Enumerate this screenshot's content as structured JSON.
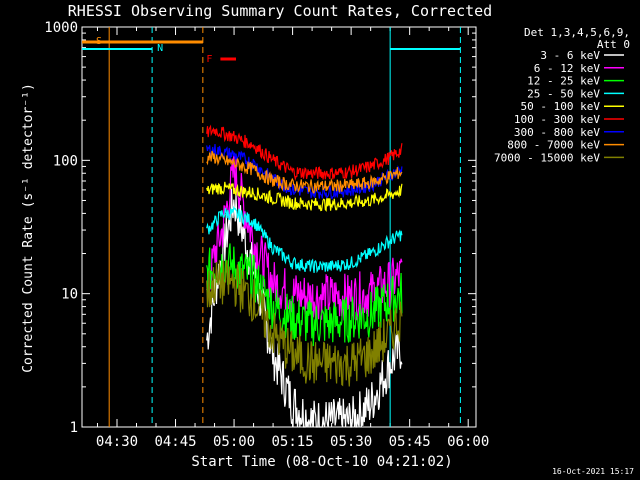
{
  "chart_data": {
    "type": "line",
    "title": "RHESSI Observing Summary Count Rates, Corrected",
    "xlabel": "Start Time (08-Oct-10 04:21:02)",
    "ylabel": "Corrected Count Rate (s⁻¹ detector⁻¹)",
    "x_ticks": [
      "04:30",
      "04:45",
      "05:00",
      "05:15",
      "05:30",
      "05:45",
      "06:00"
    ],
    "y_ticks": [
      "1",
      "10",
      "100",
      "1000"
    ],
    "y_scale": "log",
    "ylim": [
      1,
      1000
    ],
    "xlim": [
      "04:21:02",
      "06:02:00"
    ],
    "grid": false,
    "legend_header": [
      "Det 1,3,4,5,6,9,",
      "Att 0"
    ],
    "legend_position": "top-right",
    "footer_date": "16-Oct-2021 15:17",
    "intervals": [
      {
        "label": "S",
        "color": "#ff8c00",
        "start": "04:21:02",
        "end": "04:52:00"
      },
      {
        "label": "N",
        "color": "#00ffff",
        "start": "04:21:02",
        "end": "04:39:00"
      },
      {
        "label": "F",
        "color": "#ff0000",
        "start": "04:56:30",
        "end": "05:00:30"
      },
      {
        "label": "",
        "color": "#00ffff",
        "start": "05:40:00",
        "end": "05:58:00"
      }
    ],
    "markers": [
      {
        "time": "04:28:00",
        "color": "#ff8c00",
        "style": "solid"
      },
      {
        "time": "04:39:00",
        "color": "#00ffff",
        "style": "dashed"
      },
      {
        "time": "04:52:00",
        "color": "#ff8c00",
        "style": "dashed"
      },
      {
        "time": "05:40:00",
        "color": "#00ffff",
        "style": "solid"
      },
      {
        "time": "05:58:00",
        "color": "#00ffff",
        "style": "dashed"
      }
    ],
    "x_times": [
      "04:53",
      "04:55",
      "04:57",
      "05:00",
      "05:05",
      "05:10",
      "05:15",
      "05:20",
      "05:25",
      "05:30",
      "05:35",
      "05:40",
      "05:43"
    ],
    "series": [
      {
        "name": "3 - 6 keV",
        "color": "#ffffff",
        "values": [
          4.5,
          10,
          20,
          50,
          15,
          3.5,
          1.5,
          1.1,
          1.1,
          1.1,
          1.5,
          3,
          4
        ]
      },
      {
        "name": "6 - 12 keV",
        "color": "#ff00ff",
        "values": [
          9,
          20,
          30,
          85,
          25,
          12,
          10,
          9.5,
          9.5,
          9.5,
          10,
          12,
          14
        ]
      },
      {
        "name": "12 - 25 keV",
        "color": "#00ff00",
        "values": [
          14,
          16,
          17,
          16,
          13,
          8,
          6.5,
          6,
          6,
          6.5,
          7,
          9,
          10
        ]
      },
      {
        "name": "25 - 50 keV",
        "color": "#00ffff",
        "values": [
          30,
          34,
          40,
          40,
          35,
          22,
          17,
          16,
          16,
          17,
          20,
          25,
          28
        ]
      },
      {
        "name": "50 - 100 keV",
        "color": "#ffff00",
        "values": [
          58,
          62,
          62,
          60,
          57,
          52,
          48,
          47,
          47,
          48,
          50,
          55,
          60
        ]
      },
      {
        "name": "100 - 300 keV",
        "color": "#ff0000",
        "values": [
          160,
          170,
          160,
          150,
          130,
          100,
          82,
          80,
          80,
          82,
          90,
          105,
          120
        ]
      },
      {
        "name": "300 - 800 keV",
        "color": "#0000ff",
        "values": [
          120,
          120,
          115,
          110,
          95,
          72,
          60,
          58,
          58,
          60,
          65,
          78,
          85
        ]
      },
      {
        "name": "800 - 7000 keV",
        "color": "#ff8c00",
        "values": [
          105,
          105,
          100,
          95,
          85,
          70,
          65,
          64,
          64,
          65,
          68,
          76,
          82
        ]
      },
      {
        "name": "7000 - 15000 keV",
        "color": "#808000",
        "values": [
          10,
          12,
          12,
          12,
          9,
          5,
          3.5,
          3,
          3,
          3,
          3.5,
          5,
          7
        ]
      }
    ]
  }
}
